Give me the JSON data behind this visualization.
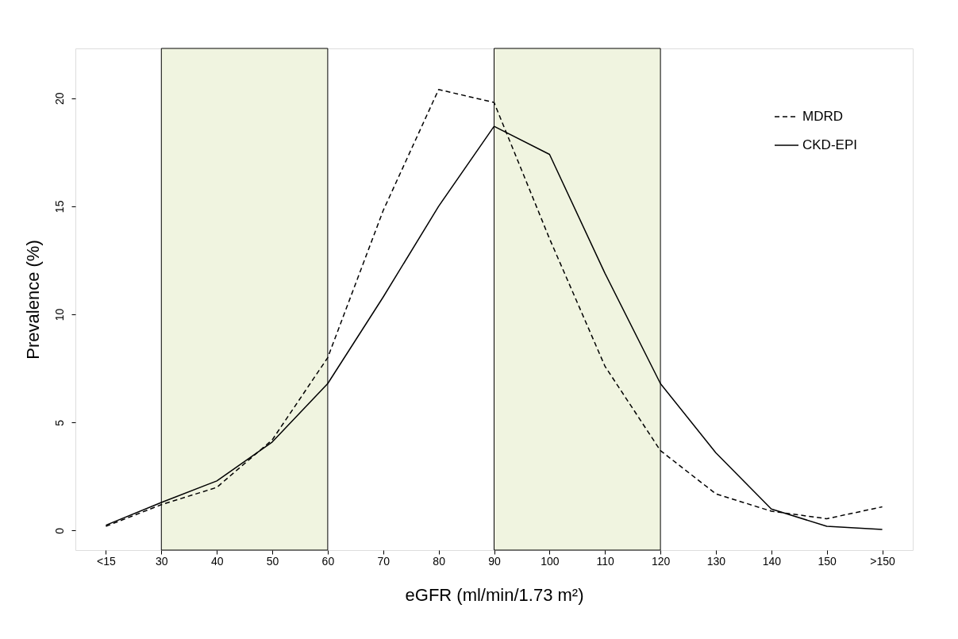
{
  "chart_data": {
    "type": "line",
    "xlabel": "eGFR (ml/min/1.73 m²)",
    "ylabel": "Prevalence (%)",
    "categories": [
      "<15",
      "30",
      "40",
      "50",
      "60",
      "70",
      "80",
      "90",
      "100",
      "110",
      "120",
      "130",
      "140",
      "150",
      ">150"
    ],
    "series": [
      {
        "name": "MDRD",
        "color": "#000000",
        "line_style": "dashed",
        "values": [
          0.2,
          1.2,
          2.0,
          4.2,
          8.0,
          14.8,
          20.4,
          19.8,
          13.5,
          7.6,
          3.7,
          1.7,
          0.9,
          0.55,
          1.1
        ]
      },
      {
        "name": "CKD-EPI",
        "color": "#000000",
        "line_style": "solid",
        "values": [
          0.25,
          1.3,
          2.3,
          4.1,
          6.8,
          10.8,
          15.0,
          18.7,
          17.4,
          11.9,
          6.8,
          3.6,
          1.0,
          0.2,
          0.05
        ]
      }
    ],
    "bands": [
      {
        "axis": "x",
        "from": "30",
        "to": "60",
        "color": "#f0f4e0"
      },
      {
        "axis": "x",
        "from": "90",
        "to": "120",
        "color": "#f0f4e0"
      }
    ],
    "ylim": [
      -0.9,
      22.3
    ],
    "yticks": [
      0,
      5,
      10,
      15,
      20
    ],
    "grid": false,
    "legend": "top right",
    "marker": "none"
  }
}
